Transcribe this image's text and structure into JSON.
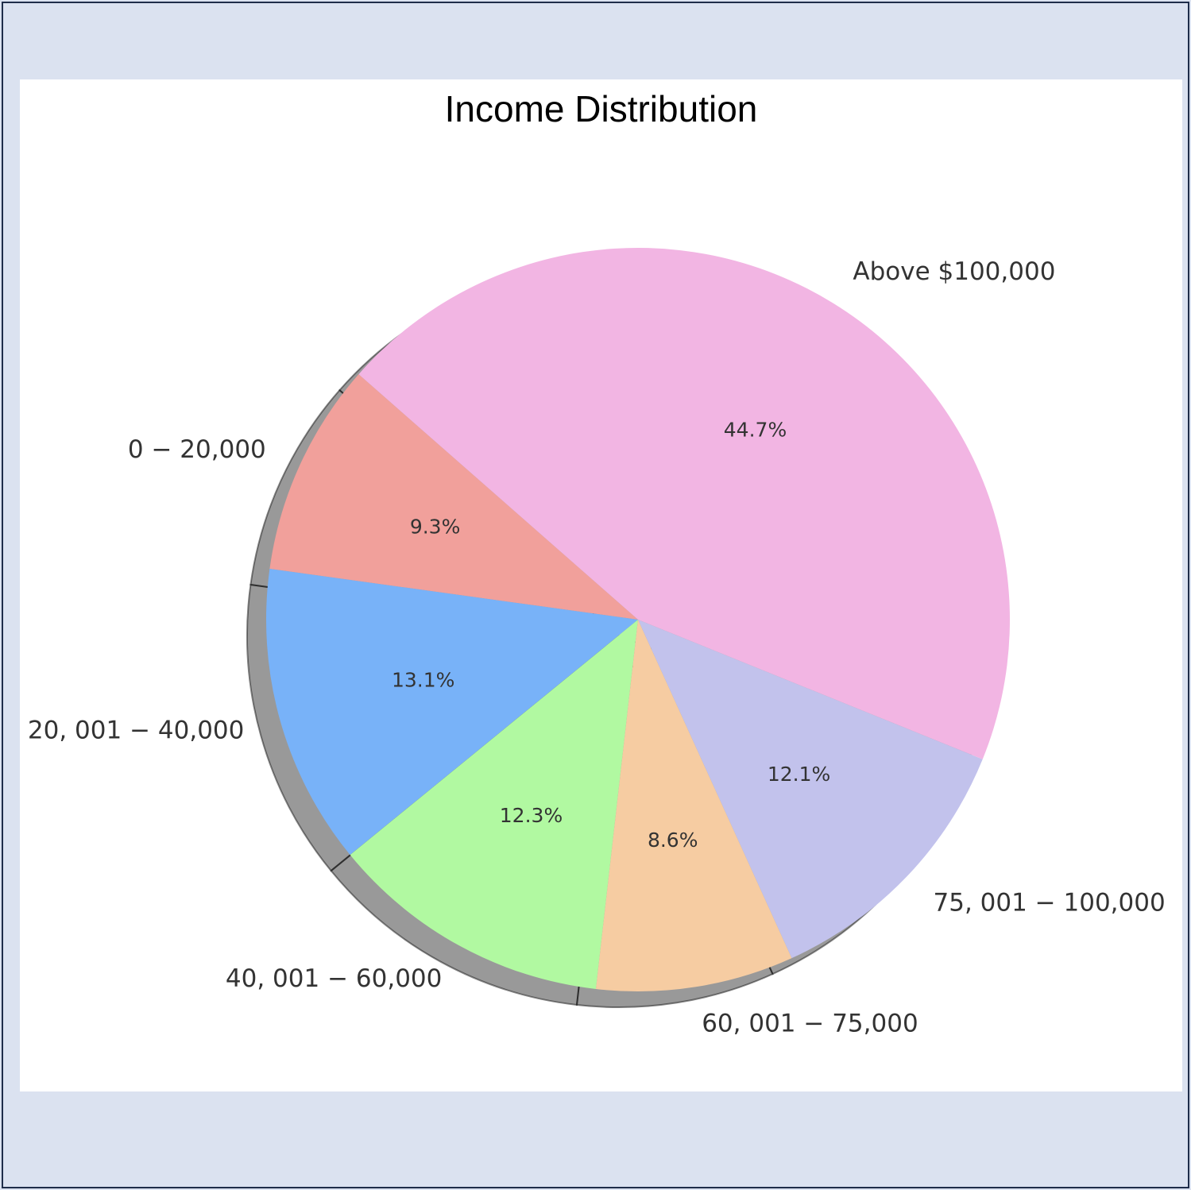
{
  "chart_data": {
    "type": "pie",
    "title": "Income Distribution",
    "categories": [
      "0 − 20,000",
      "20, 001 − 40,000",
      "40, 001 − 60,000",
      "60, 001 − 75,000",
      "75, 001 − 100,000",
      "Above $100,000"
    ],
    "values": [
      9.3,
      13.1,
      12.3,
      8.6,
      12.1,
      44.7
    ],
    "value_labels": [
      "9.3%",
      "13.1%",
      "12.3%",
      "8.6%",
      "12.1%",
      "44.7%"
    ],
    "colors": [
      "#f1a09b",
      "#78b2f8",
      "#b1f9a1",
      "#f6cca2",
      "#c2c2ec",
      "#f2b5e3"
    ],
    "shadow": true,
    "legend": "none"
  }
}
